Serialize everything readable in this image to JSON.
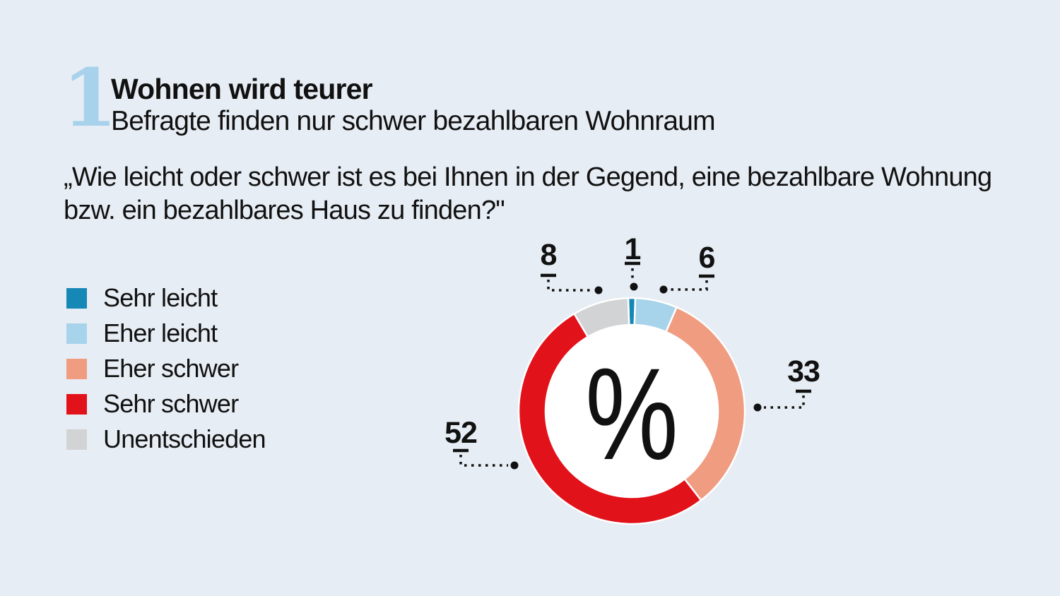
{
  "page": {
    "background_color": "#e7edf4"
  },
  "header": {
    "index_number": "1",
    "index_number_color": "#a8d2ec",
    "title": "Wohnen wird teurer",
    "subtitle": "Befragte finden nur schwer bezahlbaren Wohnraum"
  },
  "question": {
    "line1": "„Wie leicht oder schwer ist es bei Ihnen in der Gegend, eine bezahlbare Wohnung",
    "line2": "bzw. ein bezahlbares Haus zu finden?\""
  },
  "legend": {
    "items": [
      {
        "label": "Sehr leicht",
        "color": "#1588b6"
      },
      {
        "label": "Eher leicht",
        "color": "#a7d4ea"
      },
      {
        "label": "Eher schwer",
        "color": "#f09c81"
      },
      {
        "label": "Sehr schwer",
        "color": "#e2121a"
      },
      {
        "label": "Unentschieden",
        "color": "#d2d3d4"
      }
    ]
  },
  "chart_data": {
    "type": "pie",
    "subtype": "donut",
    "title": "Wohnen wird teurer",
    "subtitle": "Befragte finden nur schwer bezahlbaren Wohnraum",
    "question": "„Wie leicht oder schwer ist es bei Ihnen in der Gegend, eine bezahlbare Wohnung bzw. ein bezahlbares Haus zu finden?\"",
    "unit": "%",
    "center_label": "%",
    "categories": [
      "Sehr leicht",
      "Eher leicht",
      "Eher schwer",
      "Sehr schwer",
      "Unentschieden"
    ],
    "values": [
      1,
      6,
      33,
      52,
      8
    ],
    "colors": [
      "#1588b6",
      "#a7d4ea",
      "#f09c81",
      "#e2121a",
      "#d2d3d4"
    ],
    "layout_hints": {
      "orientation": "first slice centered at 12 o'clock, clockwise",
      "segment_separator_color": "#ffffff",
      "legend_position": "left",
      "value_labels": "outside with dotted elbow leaders and dot markers"
    }
  }
}
